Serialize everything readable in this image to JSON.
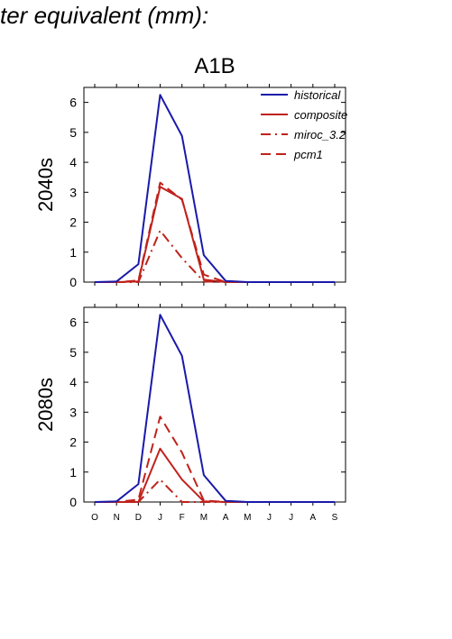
{
  "page": {
    "title_fragment": "ter equivalent (mm):"
  },
  "colors": {
    "historical": "#1a1aaa",
    "model": "#c0221c",
    "axis": "#000000"
  },
  "chart_data": [
    {
      "type": "line",
      "title": "A1B",
      "ylabel": "2040s",
      "xlabel": "",
      "categories": [
        "O",
        "N",
        "D",
        "J",
        "F",
        "M",
        "A",
        "M",
        "J",
        "J",
        "A",
        "S"
      ],
      "ylim": [
        0,
        6.5
      ],
      "yticks": [
        0,
        1,
        2,
        3,
        4,
        5,
        6
      ],
      "grid": false,
      "legend": "top-right",
      "series": [
        {
          "name": "historical",
          "style": "solid",
          "color": "#1a1aaa",
          "values": [
            0,
            0.02,
            0.6,
            6.25,
            4.88,
            0.9,
            0.04,
            0,
            0,
            0,
            0,
            0
          ]
        },
        {
          "name": "composite",
          "style": "solid",
          "color": "#c0221c",
          "values": [
            0,
            0,
            0.02,
            3.18,
            2.78,
            0.08,
            0,
            0,
            0,
            0,
            0,
            0
          ]
        },
        {
          "name": "miroc_3.2",
          "style": "dashdot",
          "color": "#c0221c",
          "values": [
            0,
            0,
            0,
            1.72,
            0.8,
            0.02,
            0,
            0,
            0,
            0,
            0,
            0
          ]
        },
        {
          "name": "pcm1",
          "style": "dashed",
          "color": "#c0221c",
          "values": [
            0,
            0,
            0.05,
            3.32,
            2.75,
            0.25,
            0,
            0,
            0,
            0,
            0,
            0
          ]
        }
      ]
    },
    {
      "type": "line",
      "title": "",
      "ylabel": "2080s",
      "xlabel": "",
      "categories": [
        "O",
        "N",
        "D",
        "J",
        "F",
        "M",
        "A",
        "M",
        "J",
        "J",
        "A",
        "S"
      ],
      "ylim": [
        0,
        6.5
      ],
      "yticks": [
        0,
        1,
        2,
        3,
        4,
        5,
        6
      ],
      "grid": false,
      "legend": "none",
      "series": [
        {
          "name": "historical",
          "style": "solid",
          "color": "#1a1aaa",
          "values": [
            0,
            0.02,
            0.6,
            6.25,
            4.88,
            0.9,
            0.04,
            0,
            0,
            0,
            0,
            0
          ]
        },
        {
          "name": "composite",
          "style": "solid",
          "color": "#c0221c",
          "values": [
            0,
            0,
            0,
            1.78,
            0.75,
            0.02,
            0,
            0,
            0,
            0,
            0,
            0
          ]
        },
        {
          "name": "miroc_3.2",
          "style": "dashdot",
          "color": "#c0221c",
          "values": [
            0,
            0,
            0,
            0.75,
            0,
            0,
            0,
            0,
            0,
            0,
            0,
            0
          ]
        },
        {
          "name": "pcm1",
          "style": "dashed",
          "color": "#c0221c",
          "values": [
            0,
            0,
            0.08,
            2.85,
            1.65,
            0.05,
            0,
            0,
            0,
            0,
            0,
            0
          ]
        }
      ]
    }
  ]
}
